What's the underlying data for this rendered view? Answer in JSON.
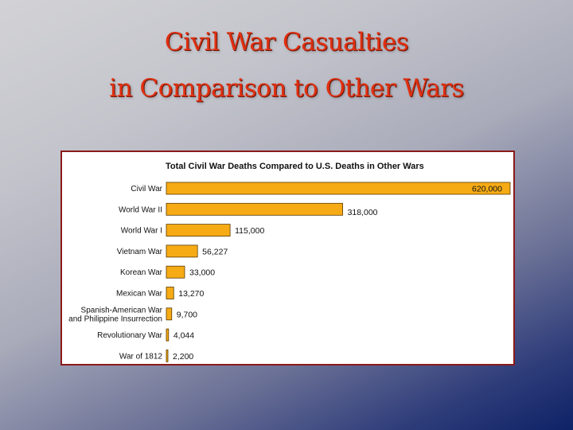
{
  "slide": {
    "title_line1": "Civil War Casualties",
    "title_line2": "in Comparison to Other Wars",
    "title_color": "#e03010"
  },
  "chart_data": {
    "type": "bar",
    "orientation": "horizontal",
    "title": "Total Civil War Deaths Compared to U.S. Deaths in Other Wars",
    "categories": [
      [
        "Civil War"
      ],
      [
        "World War II"
      ],
      [
        "World War I"
      ],
      [
        "Vietnam War"
      ],
      [
        "Korean War"
      ],
      [
        "Mexican War"
      ],
      [
        "Spanish-American War",
        "and Philippine Insurrection"
      ],
      [
        "Revolutionary War"
      ],
      [
        "War of 1812"
      ]
    ],
    "values": [
      620000,
      318000,
      115000,
      56227,
      33000,
      13270,
      9700,
      4044,
      2200
    ],
    "value_labels": [
      "620,000",
      "318,000",
      "115,000",
      "56,227",
      "33,000",
      "13,270",
      "9,700",
      "4,044",
      "2,200"
    ],
    "xlim": [
      0,
      620000
    ],
    "bar_color": "#f6ab15",
    "grid": false,
    "legend": "none"
  }
}
